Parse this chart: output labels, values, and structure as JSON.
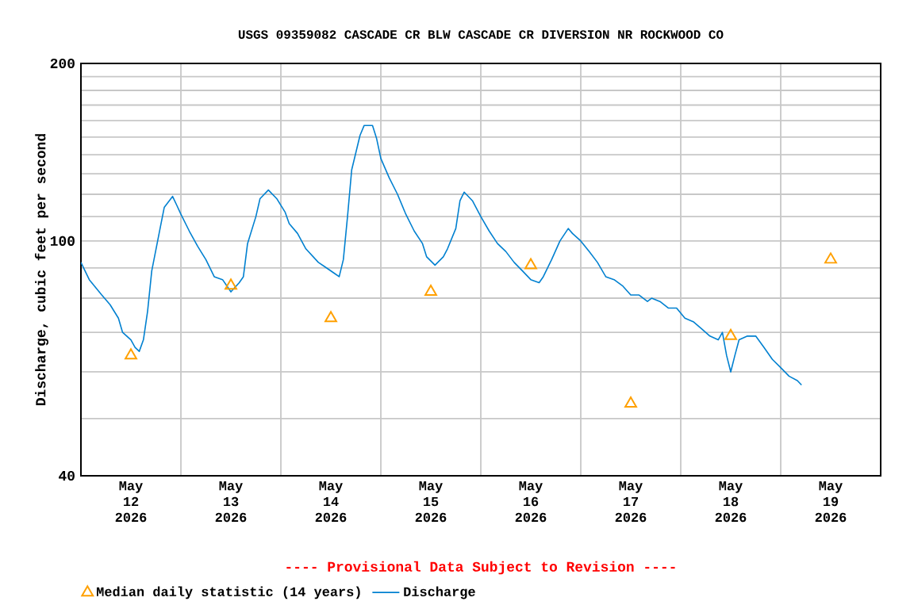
{
  "chart_data": {
    "type": "line",
    "title": "USGS 09359082 CASCADE CR BLW CASCADE CR DIVERSION NR ROCKWOOD CO",
    "ylabel": "Discharge, cubic feet per second",
    "annotations": [
      "---- Provisional Data Subject to Revision ----"
    ],
    "log": "y",
    "grid": true,
    "legend": "bottom",
    "xlim": [
      "2026-05-12T00:00",
      "2026-05-20T00:00"
    ],
    "xticks": [
      {
        "value": "2026-05-12T00:00",
        "label": null
      },
      {
        "value": "2026-05-13T00:00",
        "label": null
      },
      {
        "value": "2026-05-14T00:00",
        "label": null
      },
      {
        "value": "2026-05-15T00:00",
        "label": null
      },
      {
        "value": "2026-05-16T00:00",
        "label": null
      },
      {
        "value": "2026-05-17T00:00",
        "label": null
      },
      {
        "value": "2026-05-18T00:00",
        "label": null
      },
      {
        "value": "2026-05-19T00:00",
        "label": null
      },
      {
        "value": "2026-05-20T00:00",
        "label": null
      },
      {
        "value": "2026-05-12T12:00",
        "label": "May 12 2026"
      },
      {
        "value": "2026-05-13T12:00",
        "label": "May 13 2026"
      },
      {
        "value": "2026-05-14T12:00",
        "label": "May 14 2026"
      },
      {
        "value": "2026-05-15T12:00",
        "label": "May 15 2026"
      },
      {
        "value": "2026-05-16T12:00",
        "label": "May 16 2026"
      },
      {
        "value": "2026-05-17T12:00",
        "label": "May 17 2026"
      },
      {
        "value": "2026-05-18T12:00",
        "label": "May 18 2026"
      },
      {
        "value": "2026-05-19T12:00",
        "label": "May 19 2026"
      }
    ],
    "ylim": [
      40,
      200
    ],
    "yticks": [
      40,
      {
        "value": 50,
        "label": null
      },
      {
        "value": 60,
        "label": null
      },
      {
        "value": 70,
        "label": null
      },
      {
        "value": 80,
        "label": null
      },
      {
        "value": 90,
        "label": null
      },
      100,
      {
        "value": 110,
        "label": null
      },
      {
        "value": 120,
        "label": null
      },
      {
        "value": 130,
        "label": null
      },
      {
        "value": 140,
        "label": null
      },
      {
        "value": 150,
        "label": null
      },
      {
        "value": 160,
        "label": null
      },
      {
        "value": 170,
        "label": null
      },
      {
        "value": 180,
        "label": null
      },
      {
        "value": 190,
        "label": null
      },
      200
    ],
    "series": [
      {
        "name": "Median daily statistic (14 years)",
        "type": "scatter",
        "marker": "triangle",
        "color": "#ffa000",
        "x": [
          "2026-05-12T12:00",
          "2026-05-13T12:00",
          "2026-05-14T12:00",
          "2026-05-15T12:00",
          "2026-05-16T12:00",
          "2026-05-17T12:00",
          "2026-05-18T12:00",
          "2026-05-19T12:00"
        ],
        "values": [
          64,
          84,
          74,
          82,
          91,
          53,
          69,
          93
        ]
      },
      {
        "name": "Discharge",
        "marker": "none",
        "line_style": "solid",
        "color": "#0080d0",
        "x": [
          "2026-05-12T00:00",
          "2026-05-12T02:00",
          "2026-05-12T05:00",
          "2026-05-12T07:00",
          "2026-05-12T09:00",
          "2026-05-12T10:00",
          "2026-05-12T12:00",
          "2026-05-12T13:00",
          "2026-05-12T14:00",
          "2026-05-12T15:00",
          "2026-05-12T16:00",
          "2026-05-12T17:00",
          "2026-05-12T19:00",
          "2026-05-12T20:00",
          "2026-05-12T22:00",
          "2026-05-12T23:00",
          "2026-05-13T00:00",
          "2026-05-13T02:00",
          "2026-05-13T04:00",
          "2026-05-13T06:00",
          "2026-05-13T08:00",
          "2026-05-13T10:00",
          "2026-05-13T12:00",
          "2026-05-13T14:00",
          "2026-05-13T15:00",
          "2026-05-13T16:00",
          "2026-05-13T18:00",
          "2026-05-13T19:00",
          "2026-05-13T21:00",
          "2026-05-13T23:00",
          "2026-05-14T01:00",
          "2026-05-14T02:00",
          "2026-05-14T04:00",
          "2026-05-14T06:00",
          "2026-05-14T09:00",
          "2026-05-14T11:00",
          "2026-05-14T13:00",
          "2026-05-14T14:00",
          "2026-05-14T15:00",
          "2026-05-14T16:00",
          "2026-05-14T17:00",
          "2026-05-14T19:00",
          "2026-05-14T20:00",
          "2026-05-14T22:00",
          "2026-05-14T23:00",
          "2026-05-15T00:00",
          "2026-05-15T02:00",
          "2026-05-15T04:00",
          "2026-05-15T06:00",
          "2026-05-15T08:00",
          "2026-05-15T10:00",
          "2026-05-15T11:00",
          "2026-05-15T13:00",
          "2026-05-15T15:00",
          "2026-05-15T16:00",
          "2026-05-15T18:00",
          "2026-05-15T19:00",
          "2026-05-15T20:00",
          "2026-05-15T22:00",
          "2026-05-16T00:00",
          "2026-05-16T02:00",
          "2026-05-16T04:00",
          "2026-05-16T06:00",
          "2026-05-16T08:00",
          "2026-05-16T10:00",
          "2026-05-16T12:00",
          "2026-05-16T14:00",
          "2026-05-16T15:00",
          "2026-05-16T17:00",
          "2026-05-16T19:00",
          "2026-05-16T21:00",
          "2026-05-16T22:00",
          "2026-05-17T00:00",
          "2026-05-17T02:00",
          "2026-05-17T04:00",
          "2026-05-17T06:00",
          "2026-05-17T08:00",
          "2026-05-17T10:00",
          "2026-05-17T12:00",
          "2026-05-17T14:00",
          "2026-05-17T16:00",
          "2026-05-17T17:00",
          "2026-05-17T19:00",
          "2026-05-17T21:00",
          "2026-05-17T23:00",
          "2026-05-18T01:00",
          "2026-05-18T03:00",
          "2026-05-18T05:00",
          "2026-05-18T07:00",
          "2026-05-18T09:00",
          "2026-05-18T10:00",
          "2026-05-18T11:00",
          "2026-05-18T12:00",
          "2026-05-18T13:00",
          "2026-05-18T14:00",
          "2026-05-18T16:00",
          "2026-05-18T18:00",
          "2026-05-18T20:00",
          "2026-05-18T22:00",
          "2026-05-19T00:00",
          "2026-05-19T02:00",
          "2026-05-19T04:00",
          "2026-05-19T05:00"
        ],
        "values": [
          92,
          86,
          81,
          78,
          74,
          70,
          68,
          66,
          65,
          68,
          76,
          89,
          105,
          114,
          119,
          115,
          111,
          104,
          98,
          93,
          87,
          86,
          82,
          85,
          87,
          99,
          110,
          118,
          122,
          118,
          112,
          107,
          103,
          97,
          92,
          90,
          88,
          87,
          93,
          110,
          132,
          151,
          157,
          157,
          149,
          138,
          128,
          120,
          111,
          104,
          99,
          94,
          91,
          94,
          97,
          105,
          117,
          121,
          117,
          110,
          104,
          99,
          96,
          92,
          89,
          86,
          85,
          87,
          93,
          100,
          105,
          103,
          100,
          96,
          92,
          87,
          86,
          84,
          81,
          81,
          79,
          80,
          79,
          77,
          77,
          74,
          73,
          71,
          69,
          68,
          70,
          64,
          60,
          64,
          68,
          69,
          69,
          66,
          63,
          61,
          59,
          58,
          57
        ]
      }
    ]
  }
}
